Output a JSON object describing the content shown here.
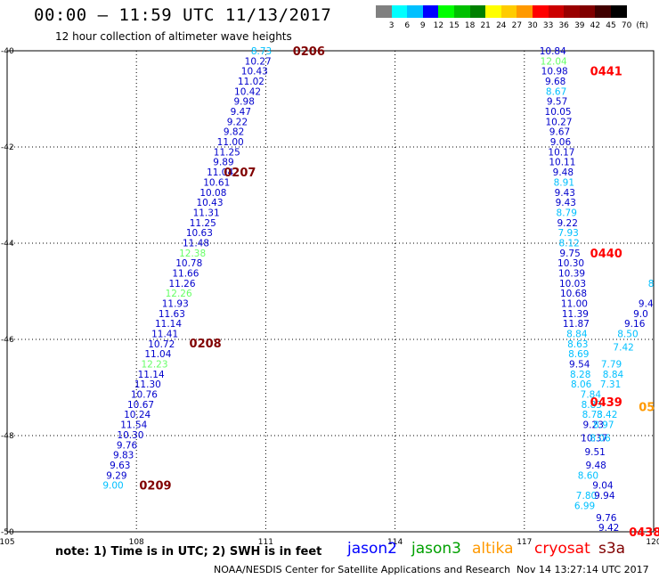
{
  "title": "00:00 – 11:59 UTC 11/13/2017",
  "subtitle": "12 hour collection of altimeter wave heights",
  "colorbar": {
    "labels": [
      "3",
      "6",
      "9",
      "12",
      "15",
      "18",
      "21",
      "24",
      "27",
      "30",
      "33",
      "36",
      "39",
      "42",
      "45",
      "70",
      "(ft)"
    ],
    "colors": [
      "#808080",
      "#00ffff",
      "#00c0ff",
      "#0000ff",
      "#00ff00",
      "#00c000",
      "#008000",
      "#ffff00",
      "#ffcc00",
      "#ff9900",
      "#ff0000",
      "#cc0000",
      "#990000",
      "#800000",
      "#400000",
      "#000000"
    ]
  },
  "note": "note: 1) Time is in UTC; 2) SWH is in feet",
  "satellites": [
    {
      "name": "jason2",
      "color": "#0000ff"
    },
    {
      "name": "jason3",
      "color": "#00a000"
    },
    {
      "name": "altika",
      "color": "#ff9900"
    },
    {
      "name": "cryosat",
      "color": "#ff0000"
    },
    {
      "name": "s3a",
      "color": "#800000"
    }
  ],
  "credit": "NOAA/NESDIS Center for Satellite Applications and Research",
  "generated": "Nov 14 13:27:14 UTC 2017",
  "chart_data": {
    "type": "scatter",
    "xlim": [
      105,
      120
    ],
    "ylim": [
      -50,
      -40
    ],
    "x_ticks": [
      "105",
      "108",
      "111",
      "114",
      "117",
      "120"
    ],
    "y_ticks": [
      "-40",
      "-42",
      "-44",
      "-46",
      "-48",
      "-50"
    ],
    "grid": true,
    "tracks": [
      {
        "name": "track-west",
        "points": [
          {
            "x": 110.9,
            "y": -40.0,
            "v": "8.73",
            "c": "#00c0ff"
          },
          {
            "x": 110.82,
            "y": -40.21,
            "v": "10.27",
            "c": "#0000cc"
          },
          {
            "x": 110.74,
            "y": -40.42,
            "v": "10.43",
            "c": "#0000cc"
          },
          {
            "x": 110.66,
            "y": -40.63,
            "v": "11.02",
            "c": "#0000cc"
          },
          {
            "x": 110.58,
            "y": -40.84,
            "v": "10.42",
            "c": "#0000cc"
          },
          {
            "x": 110.5,
            "y": -41.05,
            "v": "9.98",
            "c": "#0000cc"
          },
          {
            "x": 110.42,
            "y": -41.26,
            "v": "9.47",
            "c": "#0000cc"
          },
          {
            "x": 110.34,
            "y": -41.47,
            "v": "9.22",
            "c": "#0000cc"
          },
          {
            "x": 110.26,
            "y": -41.68,
            "v": "9.82",
            "c": "#0000cc"
          },
          {
            "x": 110.18,
            "y": -41.89,
            "v": "11.00",
            "c": "#0000cc"
          },
          {
            "x": 110.1,
            "y": -42.1,
            "v": "11.25",
            "c": "#0000cc"
          },
          {
            "x": 110.02,
            "y": -42.31,
            "v": "9.89",
            "c": "#0000cc"
          },
          {
            "x": 109.94,
            "y": -42.52,
            "v": "11.04",
            "c": "#0000cc"
          },
          {
            "x": 109.86,
            "y": -42.73,
            "v": "10.61",
            "c": "#0000cc"
          },
          {
            "x": 109.78,
            "y": -42.94,
            "v": "10.08",
            "c": "#0000cc"
          },
          {
            "x": 109.7,
            "y": -43.15,
            "v": "10.43",
            "c": "#0000cc"
          },
          {
            "x": 109.62,
            "y": -43.36,
            "v": "11.31",
            "c": "#0000cc"
          },
          {
            "x": 109.54,
            "y": -43.57,
            "v": "11.25",
            "c": "#0000cc"
          },
          {
            "x": 109.46,
            "y": -43.78,
            "v": "10.63",
            "c": "#0000cc"
          },
          {
            "x": 109.38,
            "y": -43.99,
            "v": "11.48",
            "c": "#0000cc"
          },
          {
            "x": 109.3,
            "y": -44.2,
            "v": "12.38",
            "c": "#66ff66"
          },
          {
            "x": 109.22,
            "y": -44.41,
            "v": "10.78",
            "c": "#0000cc"
          },
          {
            "x": 109.14,
            "y": -44.62,
            "v": "11.66",
            "c": "#0000cc"
          },
          {
            "x": 109.06,
            "y": -44.83,
            "v": "11.26",
            "c": "#0000cc"
          },
          {
            "x": 108.98,
            "y": -45.04,
            "v": "12.26",
            "c": "#66ff66"
          },
          {
            "x": 108.9,
            "y": -45.25,
            "v": "11.93",
            "c": "#0000cc"
          },
          {
            "x": 108.82,
            "y": -45.46,
            "v": "11.63",
            "c": "#0000cc"
          },
          {
            "x": 108.74,
            "y": -45.67,
            "v": "11.14",
            "c": "#0000cc"
          },
          {
            "x": 108.66,
            "y": -45.88,
            "v": "11.41",
            "c": "#0000cc"
          },
          {
            "x": 108.58,
            "y": -46.09,
            "v": "10.72",
            "c": "#0000cc"
          },
          {
            "x": 108.5,
            "y": -46.3,
            "v": "11.04",
            "c": "#0000cc"
          },
          {
            "x": 108.42,
            "y": -46.51,
            "v": "12.23",
            "c": "#66ff66"
          },
          {
            "x": 108.34,
            "y": -46.72,
            "v": "11.14",
            "c": "#0000cc"
          },
          {
            "x": 108.26,
            "y": -46.93,
            "v": "11.30",
            "c": "#0000cc"
          },
          {
            "x": 108.18,
            "y": -47.14,
            "v": "10.76",
            "c": "#0000cc"
          },
          {
            "x": 108.1,
            "y": -47.35,
            "v": "10.67",
            "c": "#0000cc"
          },
          {
            "x": 108.02,
            "y": -47.56,
            "v": "10.24",
            "c": "#0000cc"
          },
          {
            "x": 107.94,
            "y": -47.77,
            "v": "11.54",
            "c": "#0000cc"
          },
          {
            "x": 107.86,
            "y": -47.98,
            "v": "10.30",
            "c": "#0000cc"
          },
          {
            "x": 107.78,
            "y": -48.19,
            "v": "9.76",
            "c": "#0000cc"
          },
          {
            "x": 107.7,
            "y": -48.4,
            "v": "9.83",
            "c": "#0000cc"
          },
          {
            "x": 107.62,
            "y": -48.61,
            "v": "9.63",
            "c": "#0000cc"
          },
          {
            "x": 107.54,
            "y": -48.82,
            "v": "9.29",
            "c": "#0000cc"
          },
          {
            "x": 107.46,
            "y": -49.03,
            "v": "9.00",
            "c": "#00c0ff"
          }
        ]
      },
      {
        "name": "track-east",
        "points": [
          {
            "x": 117.66,
            "y": -40.0,
            "v": "10.84",
            "c": "#0000cc"
          },
          {
            "x": 117.68,
            "y": -40.21,
            "v": "12.04",
            "c": "#66ff66"
          },
          {
            "x": 117.7,
            "y": -40.42,
            "v": "10.98",
            "c": "#0000cc"
          },
          {
            "x": 117.72,
            "y": -40.63,
            "v": "9.68",
            "c": "#0000cc"
          },
          {
            "x": 117.74,
            "y": -40.84,
            "v": "8.67",
            "c": "#00c0ff"
          },
          {
            "x": 117.76,
            "y": -41.05,
            "v": "9.57",
            "c": "#0000cc"
          },
          {
            "x": 117.78,
            "y": -41.26,
            "v": "10.05",
            "c": "#0000cc"
          },
          {
            "x": 117.8,
            "y": -41.47,
            "v": "10.27",
            "c": "#0000cc"
          },
          {
            "x": 117.82,
            "y": -41.68,
            "v": "9.67",
            "c": "#0000cc"
          },
          {
            "x": 117.84,
            "y": -41.89,
            "v": "9.06",
            "c": "#0000cc"
          },
          {
            "x": 117.86,
            "y": -42.1,
            "v": "10.17",
            "c": "#0000cc"
          },
          {
            "x": 117.88,
            "y": -42.31,
            "v": "10.11",
            "c": "#0000cc"
          },
          {
            "x": 117.9,
            "y": -42.52,
            "v": "9.48",
            "c": "#0000cc"
          },
          {
            "x": 117.92,
            "y": -42.73,
            "v": "8.91",
            "c": "#00c0ff"
          },
          {
            "x": 117.94,
            "y": -42.94,
            "v": "9.43",
            "c": "#0000cc"
          },
          {
            "x": 117.96,
            "y": -43.15,
            "v": "9.43",
            "c": "#0000cc"
          },
          {
            "x": 117.98,
            "y": -43.36,
            "v": "8.79",
            "c": "#00c0ff"
          },
          {
            "x": 118.0,
            "y": -43.57,
            "v": "9.22",
            "c": "#0000cc"
          },
          {
            "x": 118.02,
            "y": -43.78,
            "v": "7.93",
            "c": "#00c0ff"
          },
          {
            "x": 118.04,
            "y": -43.99,
            "v": "8.12",
            "c": "#00c0ff"
          },
          {
            "x": 118.06,
            "y": -44.2,
            "v": "9.75",
            "c": "#0000cc"
          },
          {
            "x": 118.08,
            "y": -44.41,
            "v": "10.30",
            "c": "#0000cc"
          },
          {
            "x": 118.1,
            "y": -44.62,
            "v": "10.39",
            "c": "#0000cc"
          },
          {
            "x": 118.12,
            "y": -44.83,
            "v": "10.03",
            "c": "#0000cc"
          },
          {
            "x": 118.14,
            "y": -45.04,
            "v": "10.68",
            "c": "#0000cc"
          },
          {
            "x": 118.16,
            "y": -45.25,
            "v": "11.00",
            "c": "#0000cc"
          },
          {
            "x": 118.18,
            "y": -45.46,
            "v": "11.39",
            "c": "#0000cc"
          },
          {
            "x": 118.2,
            "y": -45.67,
            "v": "11.87",
            "c": "#0000cc"
          },
          {
            "x": 118.22,
            "y": -45.88,
            "v": "8.84",
            "c": "#00c0ff"
          },
          {
            "x": 118.24,
            "y": -46.09,
            "v": "8.63",
            "c": "#00c0ff"
          },
          {
            "x": 118.26,
            "y": -46.3,
            "v": "8.69",
            "c": "#00c0ff"
          },
          {
            "x": 118.28,
            "y": -46.51,
            "v": "9.54",
            "c": "#0000cc"
          },
          {
            "x": 118.3,
            "y": -46.72,
            "v": "8.28",
            "c": "#00c0ff"
          },
          {
            "x": 118.32,
            "y": -46.93,
            "v": "8.06",
            "c": "#00c0ff"
          },
          {
            "x": 118.54,
            "y": -47.14,
            "v": "7.84",
            "c": "#00c0ff"
          },
          {
            "x": 118.56,
            "y": -47.35,
            "v": "8.83",
            "c": "#00c0ff"
          },
          {
            "x": 118.58,
            "y": -47.56,
            "v": "8.73",
            "c": "#00c0ff"
          },
          {
            "x": 118.6,
            "y": -47.77,
            "v": "9.23",
            "c": "#0000cc"
          },
          {
            "x": 118.62,
            "y": -48.05,
            "v": "10.37",
            "c": "#0000cc"
          },
          {
            "x": 118.64,
            "y": -48.33,
            "v": "9.51",
            "c": "#0000cc"
          },
          {
            "x": 118.66,
            "y": -48.61,
            "v": "9.48",
            "c": "#0000cc"
          },
          {
            "x": 118.48,
            "y": -48.82,
            "v": "8.60",
            "c": "#00c0ff"
          },
          {
            "x": 118.44,
            "y": -49.24,
            "v": "7.80",
            "c": "#00c0ff"
          },
          {
            "x": 118.4,
            "y": -49.45,
            "v": "6.99",
            "c": "#00c0ff"
          }
        ]
      },
      {
        "name": "track-east-2",
        "points": [
          {
            "x": 119.0,
            "y": -46.93,
            "v": "7.31",
            "c": "#00c0ff"
          },
          {
            "x": 119.06,
            "y": -46.72,
            "v": "8.84",
            "c": "#00c0ff"
          },
          {
            "x": 119.02,
            "y": -46.51,
            "v": "7.79",
            "c": "#00c0ff"
          },
          {
            "x": 119.3,
            "y": -46.16,
            "v": "7.42",
            "c": "#00c0ff"
          },
          {
            "x": 119.4,
            "y": -45.88,
            "v": "8.50",
            "c": "#00c0ff"
          },
          {
            "x": 119.56,
            "y": -45.67,
            "v": "9.16",
            "c": "#0000cc"
          },
          {
            "x": 119.7,
            "y": -45.46,
            "v": "9.0",
            "c": "#0000cc"
          },
          {
            "x": 119.82,
            "y": -45.25,
            "v": "9.4",
            "c": "#0000cc"
          },
          {
            "x": 119.94,
            "y": -44.83,
            "v": "8",
            "c": "#00c0ff"
          },
          {
            "x": 118.92,
            "y": -47.56,
            "v": "8.42",
            "c": "#00c0ff"
          },
          {
            "x": 118.84,
            "y": -47.77,
            "v": "8.97",
            "c": "#00c0ff"
          },
          {
            "x": 118.76,
            "y": -48.05,
            "v": "8.06",
            "c": "#00c0ff"
          },
          {
            "x": 118.82,
            "y": -49.03,
            "v": "9.04",
            "c": "#0000cc"
          },
          {
            "x": 118.86,
            "y": -49.24,
            "v": "9.94",
            "c": "#0000cc"
          },
          {
            "x": 118.9,
            "y": -49.7,
            "v": "9.76",
            "c": "#0000cc"
          },
          {
            "x": 118.96,
            "y": -49.91,
            "v": "9.42",
            "c": "#0000cc"
          }
        ]
      }
    ],
    "time_labels": [
      {
        "x": 112.0,
        "y": -40.0,
        "t": "0206",
        "c": "#800000"
      },
      {
        "x": 110.4,
        "y": -42.52,
        "t": "0207",
        "c": "#800000"
      },
      {
        "x": 109.6,
        "y": -46.07,
        "t": "0208",
        "c": "#800000"
      },
      {
        "x": 108.44,
        "y": -49.03,
        "t": "0209",
        "c": "#800000"
      },
      {
        "x": 118.9,
        "y": -40.42,
        "t": "0441",
        "c": "#ff0000"
      },
      {
        "x": 118.9,
        "y": -44.2,
        "t": "0440",
        "c": "#ff0000"
      },
      {
        "x": 118.9,
        "y": -47.3,
        "t": "0439",
        "c": "#ff0000"
      },
      {
        "x": 119.8,
        "y": -50.0,
        "t": "0438",
        "c": "#ff0000"
      },
      {
        "x": 119.84,
        "y": -47.4,
        "t": "05",
        "c": "#ff9900"
      }
    ]
  }
}
